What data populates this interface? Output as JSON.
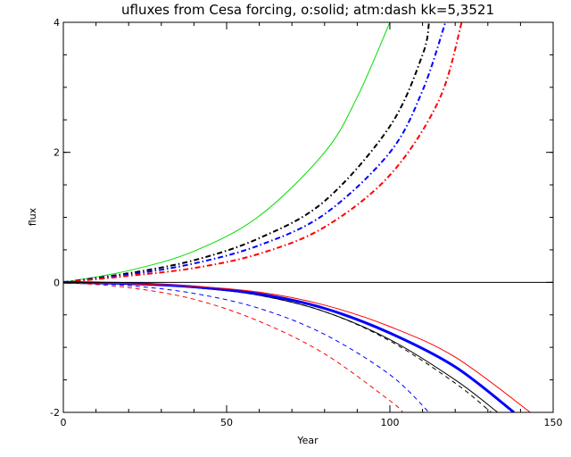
{
  "chart_data": {
    "type": "line",
    "title": "ufluxes from Cesa forcing, o:solid; atm:dash kk=5,3521",
    "xlabel": "Year",
    "ylabel": "flux",
    "xlim": [
      0,
      150
    ],
    "ylim": [
      -2,
      4
    ],
    "x_ticks": [
      {
        "value": 0,
        "label": "0"
      },
      {
        "value": 50,
        "label": "50"
      },
      {
        "value": 100,
        "label": "100"
      },
      {
        "value": 150,
        "label": "150"
      }
    ],
    "y_ticks": [
      {
        "value": -2,
        "label": "-2"
      },
      {
        "value": 0,
        "label": "0"
      },
      {
        "value": 2,
        "label": "2"
      },
      {
        "value": 4,
        "label": "4"
      }
    ],
    "grid": false,
    "legend": "none",
    "zero_line": true,
    "series": [
      {
        "color": "#00dd00",
        "style": "solid",
        "width": 1,
        "x": [
          0,
          20,
          40,
          60,
          80,
          90,
          100
        ],
        "y": [
          0,
          0.18,
          0.48,
          1.02,
          2.0,
          2.85,
          4.0
        ]
      },
      {
        "color": "#000000",
        "style": "dashdot",
        "width": 2,
        "x": [
          0,
          20,
          40,
          60,
          80,
          100,
          110,
          112
        ],
        "y": [
          0,
          0.14,
          0.34,
          0.68,
          1.25,
          2.4,
          3.5,
          4.0
        ]
      },
      {
        "color": "#0000ff",
        "style": "dashdot",
        "width": 2,
        "x": [
          0,
          20,
          40,
          60,
          80,
          100,
          110,
          117
        ],
        "y": [
          0,
          0.12,
          0.29,
          0.57,
          1.05,
          2.0,
          2.95,
          4.0
        ]
      },
      {
        "color": "#ff0000",
        "style": "dashdot",
        "width": 2,
        "x": [
          0,
          20,
          40,
          60,
          80,
          100,
          115,
          122
        ],
        "y": [
          0,
          0.1,
          0.22,
          0.44,
          0.85,
          1.65,
          2.8,
          4.0
        ]
      },
      {
        "color": "#000000",
        "style": "solid",
        "width": 1,
        "x": [
          0,
          20,
          40,
          60,
          80,
          100,
          120,
          133
        ],
        "y": [
          0,
          -0.02,
          -0.08,
          -0.2,
          -0.45,
          -0.88,
          -1.5,
          -2.0
        ]
      },
      {
        "color": "#000000",
        "style": "dashed",
        "width": 1,
        "x": [
          0,
          20,
          40,
          60,
          80,
          100,
          120,
          131
        ],
        "y": [
          0,
          -0.02,
          -0.08,
          -0.2,
          -0.45,
          -0.9,
          -1.55,
          -2.0
        ]
      },
      {
        "color": "#0000ff",
        "style": "solid",
        "width": 3,
        "x": [
          0,
          20,
          40,
          60,
          80,
          100,
          120,
          138
        ],
        "y": [
          0,
          -0.02,
          -0.07,
          -0.18,
          -0.4,
          -0.78,
          -1.3,
          -2.0
        ]
      },
      {
        "color": "#ff0000",
        "style": "solid",
        "width": 1,
        "x": [
          0,
          20,
          40,
          60,
          80,
          100,
          120,
          143
        ],
        "y": [
          0,
          -0.02,
          -0.06,
          -0.15,
          -0.35,
          -0.68,
          -1.15,
          -2.0
        ]
      },
      {
        "color": "#0000ff",
        "style": "dashed",
        "width": 1,
        "x": [
          0,
          20,
          40,
          60,
          80,
          100,
          112
        ],
        "y": [
          0,
          -0.05,
          -0.17,
          -0.4,
          -0.8,
          -1.42,
          -2.0
        ]
      },
      {
        "color": "#ff0000",
        "style": "dashed",
        "width": 1,
        "x": [
          0,
          20,
          40,
          60,
          80,
          100,
          104
        ],
        "y": [
          0,
          -0.08,
          -0.26,
          -0.6,
          -1.1,
          -1.82,
          -2.0
        ]
      }
    ]
  }
}
